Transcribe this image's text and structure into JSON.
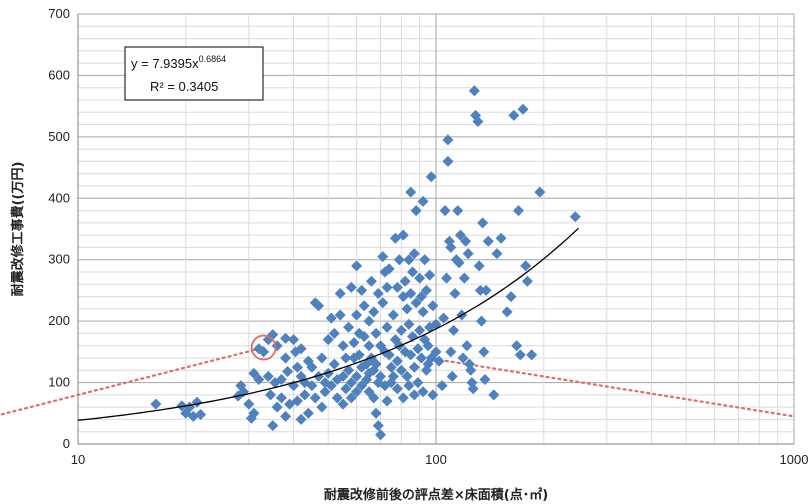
{
  "chart_data": {
    "type": "scatter",
    "title": "",
    "xlabel": "耐震改修前後の評点差×床面積(点･㎡)",
    "ylabel": "耐震改修工事費((万円)",
    "x_scale": "log",
    "xlim": [
      10,
      1000
    ],
    "ylim": [
      0,
      700
    ],
    "x_ticks": [
      "10",
      "100",
      "1000"
    ],
    "y_ticks": [
      "0",
      "100",
      "200",
      "300",
      "400",
      "500",
      "600",
      "700"
    ],
    "grid": true,
    "legend": "none",
    "marker_color": "#4f81bd",
    "trend_color": "#000000",
    "highlight_color": "#e06b6b",
    "trendline": {
      "type": "power",
      "a": 7.9395,
      "b": 0.6864,
      "x_range": [
        10,
        250
      ],
      "equation_text": "y = 7.9395x",
      "equation_exponent": "0.6864",
      "r2_text": "R² = 0.3405"
    },
    "highlight_point": {
      "x": 33,
      "y": 157
    },
    "guide_lines": [
      {
        "from": [
          2.9,
          0
        ],
        "to": [
          33,
          157
        ]
      },
      {
        "from": [
          95,
          140
        ],
        "to": [
          1000,
          45
        ]
      }
    ],
    "points": [
      [
        16.5,
        65
      ],
      [
        19.5,
        62
      ],
      [
        20,
        50
      ],
      [
        20.5,
        60
      ],
      [
        21,
        45
      ],
      [
        21.5,
        68
      ],
      [
        22,
        48
      ],
      [
        28,
        78
      ],
      [
        28.5,
        95
      ],
      [
        29,
        85
      ],
      [
        30,
        65
      ],
      [
        30.5,
        42
      ],
      [
        31,
        50
      ],
      [
        31,
        115
      ],
      [
        32,
        105
      ],
      [
        32,
        155
      ],
      [
        33,
        150
      ],
      [
        34,
        110
      ],
      [
        34,
        170
      ],
      [
        34.5,
        80
      ],
      [
        35,
        178
      ],
      [
        35,
        30
      ],
      [
        35.5,
        100
      ],
      [
        36,
        160
      ],
      [
        36,
        60
      ],
      [
        37,
        105
      ],
      [
        37,
        75
      ],
      [
        38,
        172
      ],
      [
        38,
        140
      ],
      [
        38,
        45
      ],
      [
        38.5,
        118
      ],
      [
        39,
        65
      ],
      [
        40,
        170
      ],
      [
        40,
        95
      ],
      [
        40.5,
        150
      ],
      [
        41,
        125
      ],
      [
        41,
        70
      ],
      [
        42,
        155
      ],
      [
        42,
        110
      ],
      [
        42,
        40
      ],
      [
        43,
        100
      ],
      [
        43,
        80
      ],
      [
        44,
        135
      ],
      [
        44,
        50
      ],
      [
        45,
        125
      ],
      [
        45,
        95
      ],
      [
        46,
        230
      ],
      [
        46,
        75
      ],
      [
        47,
        225
      ],
      [
        47,
        110
      ],
      [
        48,
        140
      ],
      [
        48,
        60
      ],
      [
        49,
        100
      ],
      [
        49,
        85
      ],
      [
        50,
        170
      ],
      [
        50,
        115
      ],
      [
        51,
        205
      ],
      [
        51,
        95
      ],
      [
        52,
        180
      ],
      [
        52,
        130
      ],
      [
        53,
        105
      ],
      [
        53,
        75
      ],
      [
        54,
        245
      ],
      [
        54,
        210
      ],
      [
        55,
        160
      ],
      [
        55,
        110
      ],
      [
        55,
        65
      ],
      [
        56,
        140
      ],
      [
        56,
        90
      ],
      [
        57,
        190
      ],
      [
        57,
        120
      ],
      [
        58,
        255
      ],
      [
        58,
        100
      ],
      [
        58,
        75
      ],
      [
        59,
        165
      ],
      [
        59,
        140
      ],
      [
        60,
        290
      ],
      [
        60,
        210
      ],
      [
        60,
        110
      ],
      [
        60,
        85
      ],
      [
        61,
        180
      ],
      [
        61,
        145
      ],
      [
        62,
        250
      ],
      [
        62,
        125
      ],
      [
        62,
        95
      ],
      [
        63,
        225
      ],
      [
        63,
        175
      ],
      [
        64,
        130
      ],
      [
        64,
        105
      ],
      [
        65,
        200
      ],
      [
        65,
        160
      ],
      [
        65,
        115
      ],
      [
        65,
        85
      ],
      [
        66,
        265
      ],
      [
        66,
        140
      ],
      [
        67,
        215
      ],
      [
        67,
        120
      ],
      [
        67,
        75
      ],
      [
        68,
        180
      ],
      [
        68,
        130
      ],
      [
        68,
        50
      ],
      [
        69,
        245
      ],
      [
        69,
        100
      ],
      [
        69,
        30
      ],
      [
        70,
        15
      ],
      [
        70,
        160
      ],
      [
        70,
        110
      ],
      [
        71,
        305
      ],
      [
        71,
        230
      ],
      [
        72,
        280
      ],
      [
        72,
        150
      ],
      [
        72,
        95
      ],
      [
        73,
        255
      ],
      [
        73,
        190
      ],
      [
        73,
        70
      ],
      [
        74,
        285
      ],
      [
        74,
        145
      ],
      [
        75,
        125
      ],
      [
        75,
        100
      ],
      [
        76,
        210
      ],
      [
        76,
        110
      ],
      [
        77,
        335
      ],
      [
        77,
        170
      ],
      [
        78,
        255
      ],
      [
        78,
        135
      ],
      [
        78,
        90
      ],
      [
        79,
        300
      ],
      [
        79,
        160
      ],
      [
        80,
        185
      ],
      [
        80,
        120
      ],
      [
        81,
        340
      ],
      [
        81,
        240
      ],
      [
        81,
        75
      ],
      [
        82,
        265
      ],
      [
        82,
        150
      ],
      [
        83,
        220
      ],
      [
        83,
        110
      ],
      [
        84,
        300
      ],
      [
        84,
        195
      ],
      [
        84,
        95
      ],
      [
        85,
        410
      ],
      [
        85,
        245
      ],
      [
        85,
        145
      ],
      [
        86,
        280
      ],
      [
        86,
        175
      ],
      [
        87,
        310
      ],
      [
        87,
        125
      ],
      [
        87,
        80
      ],
      [
        88,
        380
      ],
      [
        88,
        230
      ],
      [
        89,
        155
      ],
      [
        89,
        100
      ],
      [
        90,
        270
      ],
      [
        90,
        185
      ],
      [
        91,
        240
      ],
      [
        91,
        140
      ],
      [
        92,
        395
      ],
      [
        92,
        215
      ],
      [
        92,
        85
      ],
      [
        93,
        300
      ],
      [
        93,
        170
      ],
      [
        94,
        250
      ],
      [
        94,
        120
      ],
      [
        95,
        160
      ],
      [
        95,
        130
      ],
      [
        96,
        275
      ],
      [
        96,
        190
      ],
      [
        97,
        435
      ],
      [
        97,
        140
      ],
      [
        98,
        225
      ],
      [
        98,
        80
      ],
      [
        100,
        195
      ],
      [
        100,
        150
      ],
      [
        102,
        135
      ],
      [
        104,
        95
      ],
      [
        105,
        205
      ],
      [
        106,
        380
      ],
      [
        107,
        270
      ],
      [
        108,
        495
      ],
      [
        108,
        460
      ],
      [
        109,
        330
      ],
      [
        110,
        320
      ],
      [
        110,
        150
      ],
      [
        111,
        110
      ],
      [
        112,
        185
      ],
      [
        113,
        245
      ],
      [
        114,
        300
      ],
      [
        115,
        380
      ],
      [
        116,
        295
      ],
      [
        117,
        340
      ],
      [
        118,
        210
      ],
      [
        119,
        140
      ],
      [
        120,
        270
      ],
      [
        121,
        330
      ],
      [
        122,
        160
      ],
      [
        123,
        310
      ],
      [
        124,
        130
      ],
      [
        125,
        120
      ],
      [
        126,
        100
      ],
      [
        127,
        90
      ],
      [
        128,
        575
      ],
      [
        129,
        535
      ],
      [
        131,
        525
      ],
      [
        132,
        290
      ],
      [
        133,
        250
      ],
      [
        134,
        200
      ],
      [
        135,
        360
      ],
      [
        136,
        150
      ],
      [
        137,
        105
      ],
      [
        138,
        250
      ],
      [
        140,
        330
      ],
      [
        145,
        80
      ],
      [
        148,
        310
      ],
      [
        152,
        335
      ],
      [
        158,
        215
      ],
      [
        162,
        240
      ],
      [
        165,
        535
      ],
      [
        168,
        160
      ],
      [
        170,
        380
      ],
      [
        172,
        145
      ],
      [
        175,
        545
      ],
      [
        178,
        290
      ],
      [
        180,
        265
      ],
      [
        185,
        145
      ],
      [
        195,
        410
      ],
      [
        245,
        370
      ]
    ]
  }
}
